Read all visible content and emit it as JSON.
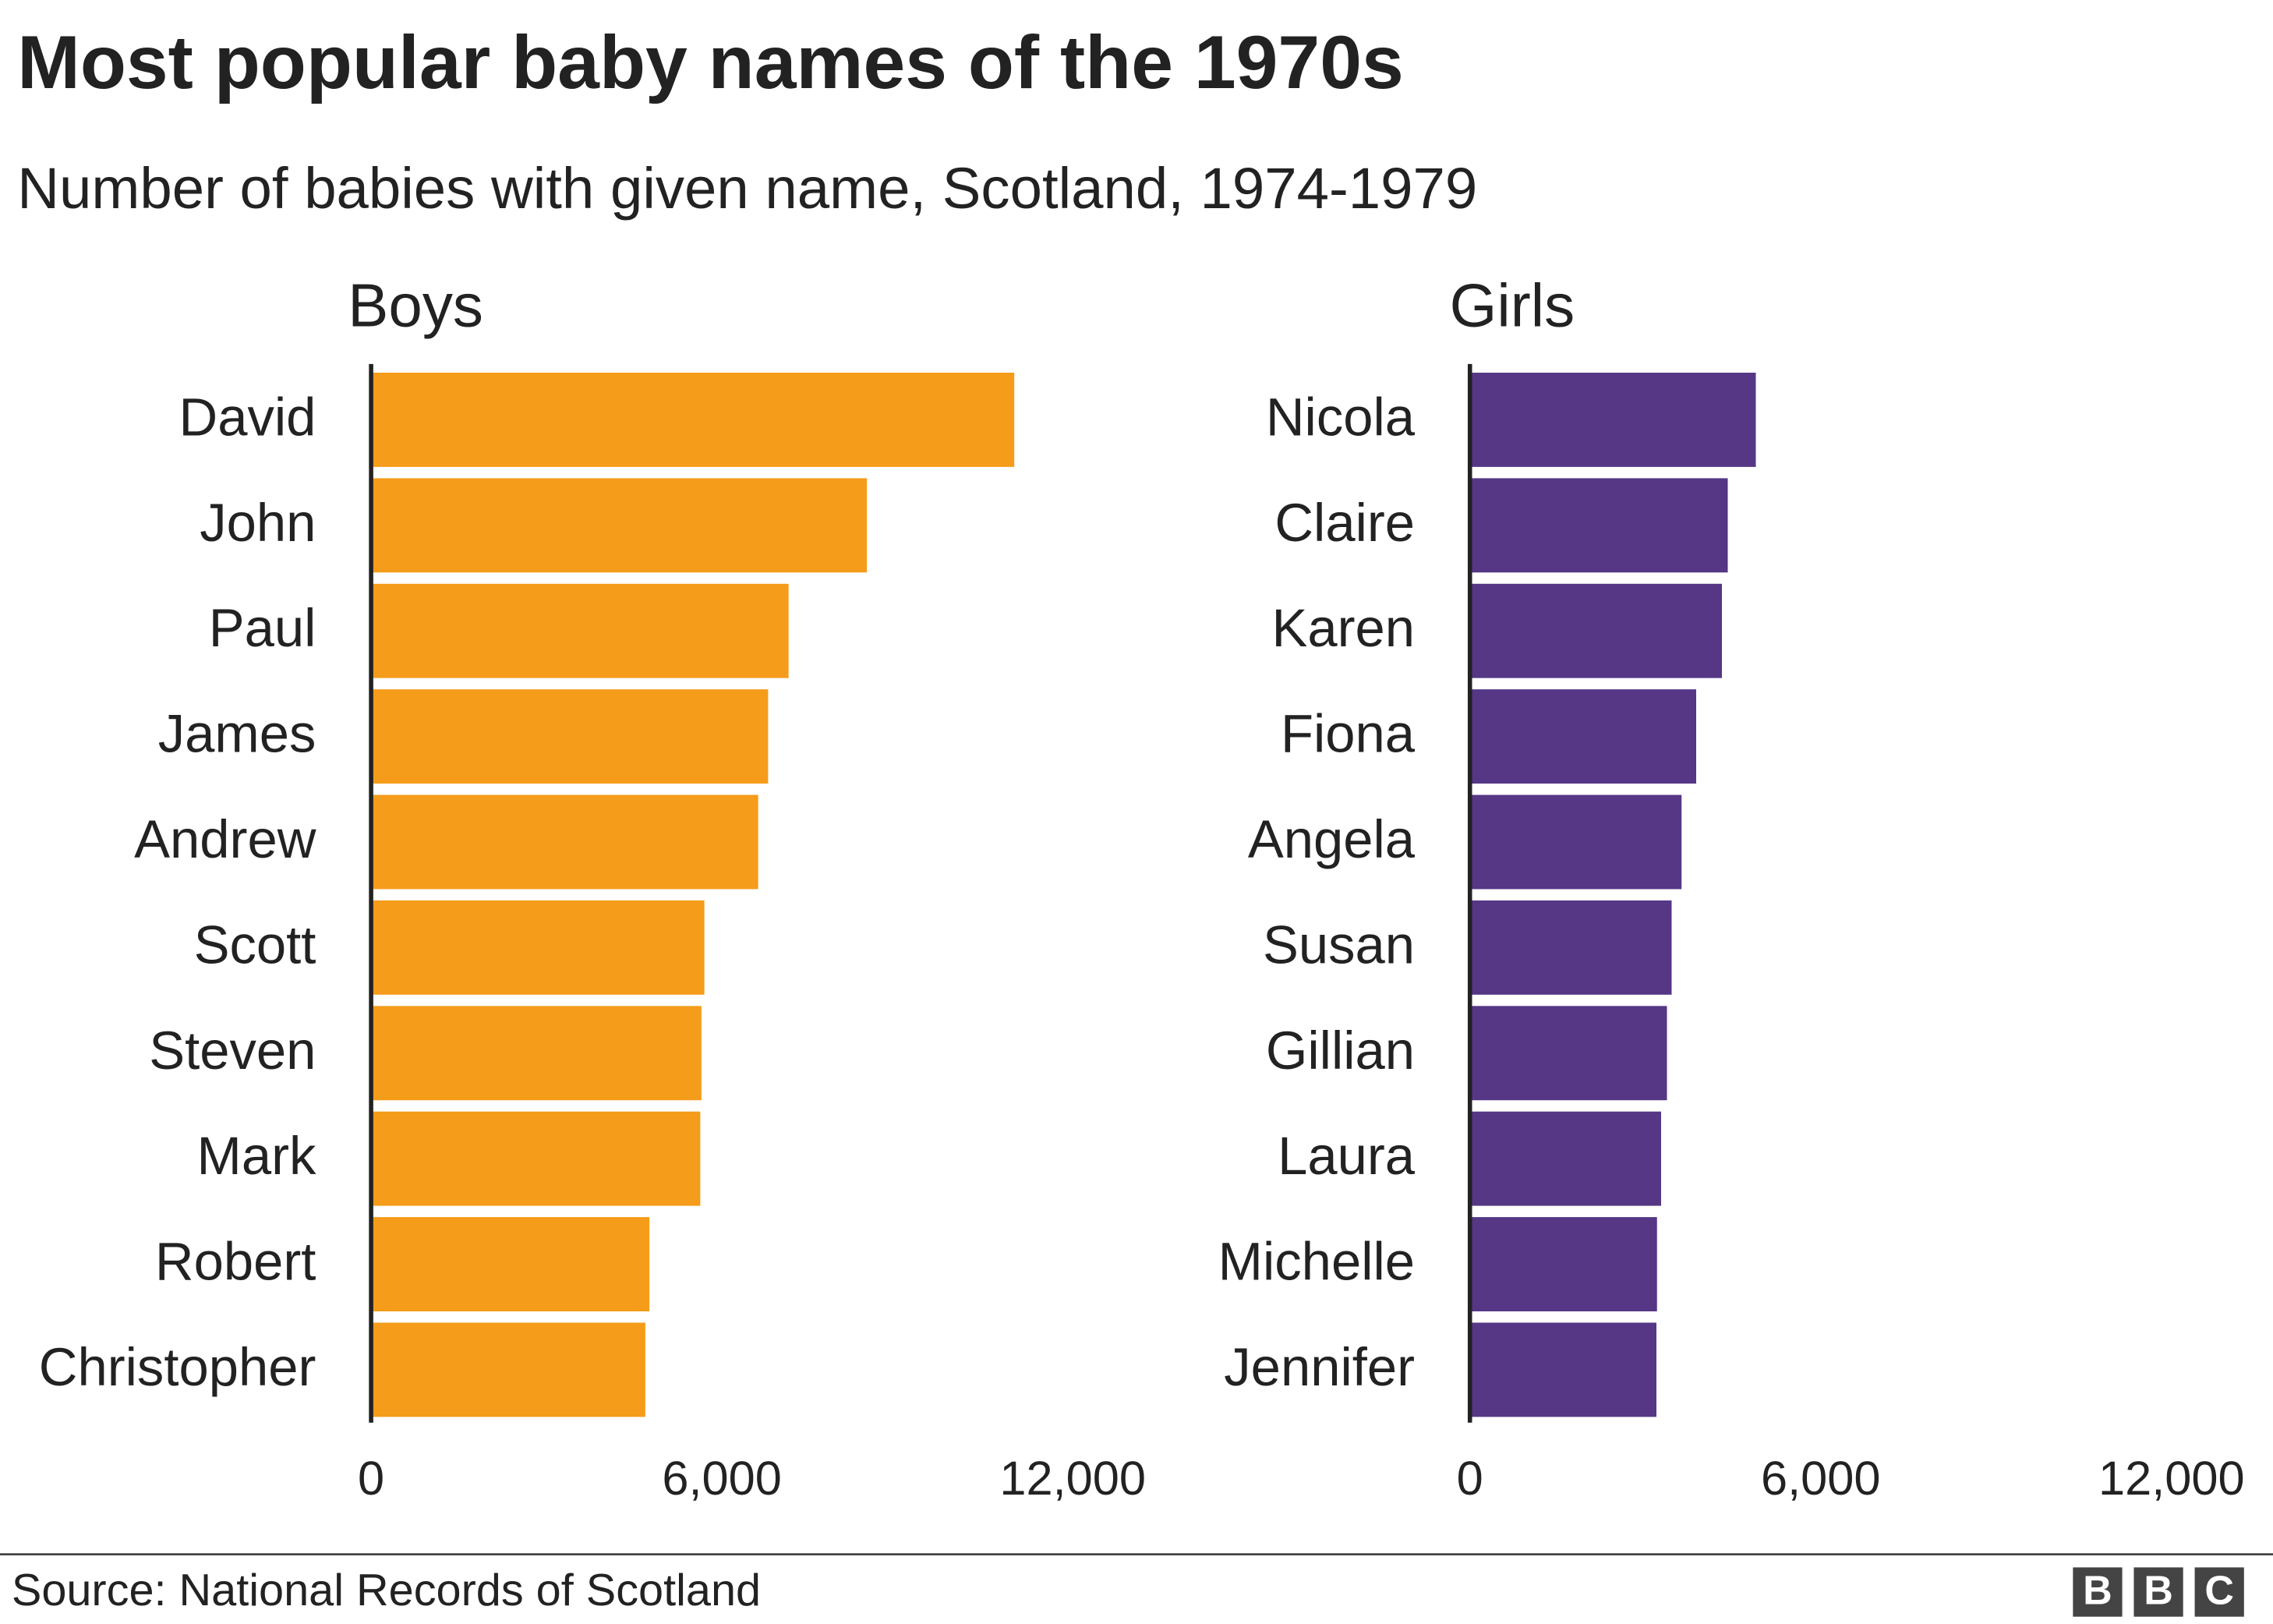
{
  "title": "Most popular baby names of the 1970s",
  "subtitle": "Number of babies with given name, Scotland, 1974-1979",
  "source": "Source: National Records of Scotland",
  "logo": "BBC",
  "chart_data": [
    {
      "type": "bar",
      "orientation": "horizontal",
      "title": "Boys",
      "categories": [
        "David",
        "John",
        "Paul",
        "James",
        "Andrew",
        "Scott",
        "Steven",
        "Mark",
        "Robert",
        "Christopher"
      ],
      "values": [
        11000,
        8480,
        7140,
        6790,
        6620,
        5700,
        5650,
        5630,
        4760,
        4690
      ],
      "color": "#f59c1a",
      "xlim": [
        0,
        12000
      ],
      "xticks": [
        0,
        {
          "value": 6000,
          "label": "6,000"
        },
        {
          "value": 12000,
          "label": "12,000"
        }
      ]
    },
    {
      "type": "bar",
      "orientation": "horizontal",
      "title": "Girls",
      "categories": [
        "Nicola",
        "Claire",
        "Karen",
        "Fiona",
        "Angela",
        "Susan",
        "Gillian",
        "Laura",
        "Michelle",
        "Jennifer"
      ],
      "values": [
        4890,
        4410,
        4310,
        3870,
        3620,
        3450,
        3370,
        3270,
        3200,
        3190
      ],
      "color": "#553785",
      "xlim": [
        0,
        12000
      ],
      "xticks": [
        0,
        {
          "value": 6000,
          "label": "6,000"
        },
        {
          "value": 12000,
          "label": "12,000"
        }
      ]
    }
  ]
}
